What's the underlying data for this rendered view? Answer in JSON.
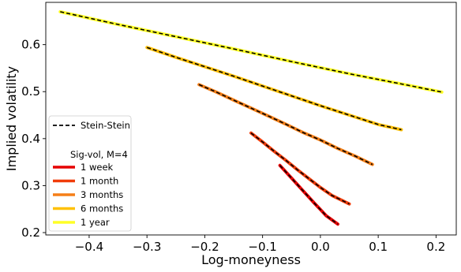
{
  "chart_data": {
    "type": "line",
    "xlabel": "Log-moneyness",
    "ylabel": "Implied volatility",
    "xlim": [
      -0.475,
      0.235
    ],
    "ylim": [
      0.195,
      0.69
    ],
    "xticks": [
      -0.4,
      -0.3,
      -0.2,
      -0.1,
      0.0,
      0.1,
      0.2
    ],
    "xtick_labels": [
      "−0.4",
      "−0.3",
      "−0.2",
      "−0.1",
      "0.0",
      "0.1",
      "0.2"
    ],
    "yticks": [
      0.2,
      0.3,
      0.4,
      0.5,
      0.6
    ],
    "ytick_labels": [
      "0.2",
      "0.3",
      "0.4",
      "0.5",
      "0.6"
    ],
    "grid": false,
    "legend": {
      "placement": "bottom-left",
      "reference_label": "Stein-Stein",
      "group_title": "Sig-vol, M=4",
      "entries": [
        "1 week",
        "1 month",
        "3 months",
        "6 months",
        "1 year"
      ]
    },
    "reference_style": {
      "color": "#000000",
      "dash": "dashed"
    },
    "series": [
      {
        "name": "1 week",
        "color": "#e50000",
        "x": [
          -0.07,
          -0.05,
          -0.03,
          -0.01,
          0.0,
          0.01,
          0.03
        ],
        "y": [
          0.343,
          0.316,
          0.289,
          0.262,
          0.249,
          0.236,
          0.218
        ]
      },
      {
        "name": "1 month",
        "color": "#f03c0a",
        "x": [
          -0.12,
          -0.1,
          -0.08,
          -0.06,
          -0.04,
          -0.02,
          0.0,
          0.02,
          0.05
        ],
        "y": [
          0.412,
          0.393,
          0.373,
          0.354,
          0.334,
          0.315,
          0.296,
          0.279,
          0.261
        ]
      },
      {
        "name": "3 months",
        "color": "#f57f17",
        "x": [
          -0.21,
          -0.18,
          -0.15,
          -0.12,
          -0.09,
          -0.06,
          -0.03,
          0.0,
          0.03,
          0.06,
          0.09
        ],
        "y": [
          0.515,
          0.499,
          0.482,
          0.465,
          0.448,
          0.431,
          0.413,
          0.397,
          0.379,
          0.363,
          0.345
        ]
      },
      {
        "name": "6 months",
        "color": "#ffc107",
        "x": [
          -0.3,
          -0.25,
          -0.2,
          -0.15,
          -0.1,
          -0.05,
          0.0,
          0.05,
          0.1,
          0.14
        ],
        "y": [
          0.594,
          0.573,
          0.553,
          0.533,
          0.512,
          0.491,
          0.47,
          0.45,
          0.43,
          0.419
        ]
      },
      {
        "name": "1 year",
        "color": "#ffff26",
        "x": [
          -0.45,
          -0.35,
          -0.25,
          -0.15,
          -0.05,
          0.05,
          0.15,
          0.21
        ],
        "y": [
          0.67,
          0.643,
          0.617,
          0.591,
          0.564,
          0.538,
          0.514,
          0.499
        ]
      }
    ]
  }
}
